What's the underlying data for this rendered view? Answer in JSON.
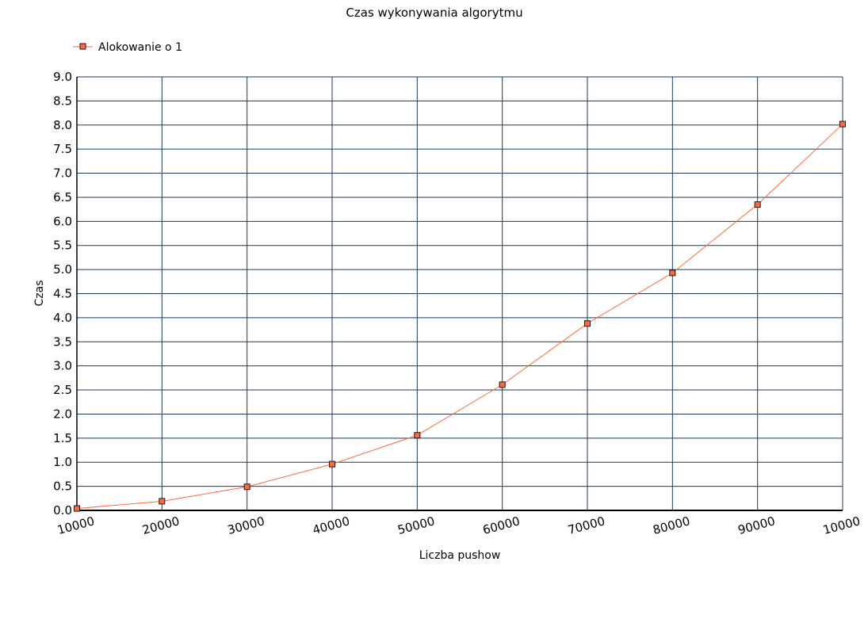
{
  "chart_data": {
    "type": "line",
    "title": "Czas wykonywania algorytmu",
    "xlabel": "Liczba pushow",
    "ylabel": "Czas",
    "categories": [
      "10000",
      "20000",
      "30000",
      "40000",
      "50000",
      "60000",
      "70000",
      "80000",
      "90000",
      "10000"
    ],
    "series": [
      {
        "name": "Alokowanie o 1",
        "values": [
          0.04,
          0.19,
          0.49,
          0.96,
          1.56,
          2.61,
          3.88,
          4.93,
          6.35,
          8.02
        ]
      }
    ],
    "ylim": [
      0,
      9
    ],
    "ytick_step": 0.5,
    "grid": true,
    "legend_position": "top-left",
    "colors": {
      "series": "#ff6a3d",
      "marker_fill": "#ff6a3d",
      "marker_stroke": "#1a1a1a",
      "grid": "#1f3a5a",
      "axis": "#000000"
    }
  }
}
